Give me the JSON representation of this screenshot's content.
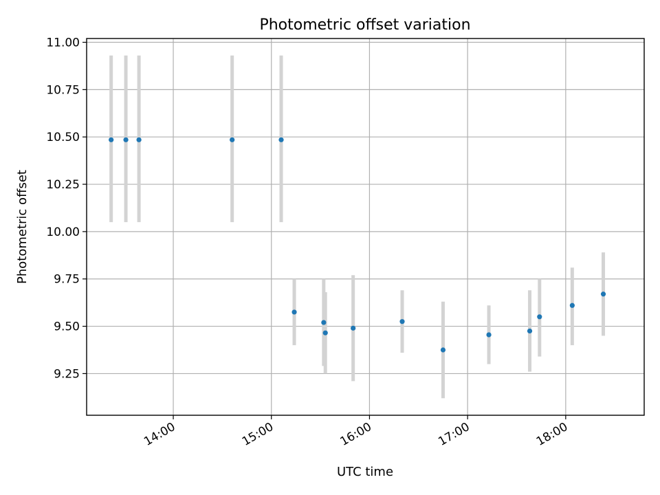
{
  "chart_data": {
    "type": "scatter",
    "title": "Photometric offset variation",
    "xlabel": "UTC time",
    "ylabel": "Photometric offset",
    "xlim": [
      "13:07",
      "18:48"
    ],
    "ylim": [
      9.03,
      11.02
    ],
    "x_ticks": [
      "14:00",
      "15:00",
      "16:00",
      "17:00",
      "18:00"
    ],
    "y_ticks": [
      "9.25",
      "9.50",
      "9.75",
      "10.00",
      "10.25",
      "10.50",
      "10.75",
      "11.00"
    ],
    "grid": true,
    "marker_color": "#1f77b4",
    "errorbar_color": "#d3d3d3",
    "points": [
      {
        "time": "13:22",
        "value": 10.485,
        "low": 10.05,
        "high": 10.93
      },
      {
        "time": "13:31",
        "value": 10.485,
        "low": 10.05,
        "high": 10.93
      },
      {
        "time": "13:39",
        "value": 10.485,
        "low": 10.05,
        "high": 10.93
      },
      {
        "time": "14:36",
        "value": 10.485,
        "low": 10.05,
        "high": 10.93
      },
      {
        "time": "15:06",
        "value": 10.485,
        "low": 10.05,
        "high": 10.93
      },
      {
        "time": "15:14",
        "value": 9.575,
        "low": 9.4,
        "high": 9.75
      },
      {
        "time": "15:32",
        "value": 9.52,
        "low": 9.29,
        "high": 9.75
      },
      {
        "time": "15:33",
        "value": 9.465,
        "low": 9.25,
        "high": 9.68
      },
      {
        "time": "15:50",
        "value": 9.49,
        "low": 9.21,
        "high": 9.77
      },
      {
        "time": "16:20",
        "value": 9.525,
        "low": 9.36,
        "high": 9.69
      },
      {
        "time": "16:45",
        "value": 9.375,
        "low": 9.12,
        "high": 9.63
      },
      {
        "time": "17:13",
        "value": 9.455,
        "low": 9.3,
        "high": 9.61
      },
      {
        "time": "17:38",
        "value": 9.475,
        "low": 9.26,
        "high": 9.69
      },
      {
        "time": "17:44",
        "value": 9.55,
        "low": 9.34,
        "high": 9.75
      },
      {
        "time": "18:04",
        "value": 9.61,
        "low": 9.4,
        "high": 9.81
      },
      {
        "time": "18:23",
        "value": 9.67,
        "low": 9.45,
        "high": 9.89
      }
    ]
  }
}
